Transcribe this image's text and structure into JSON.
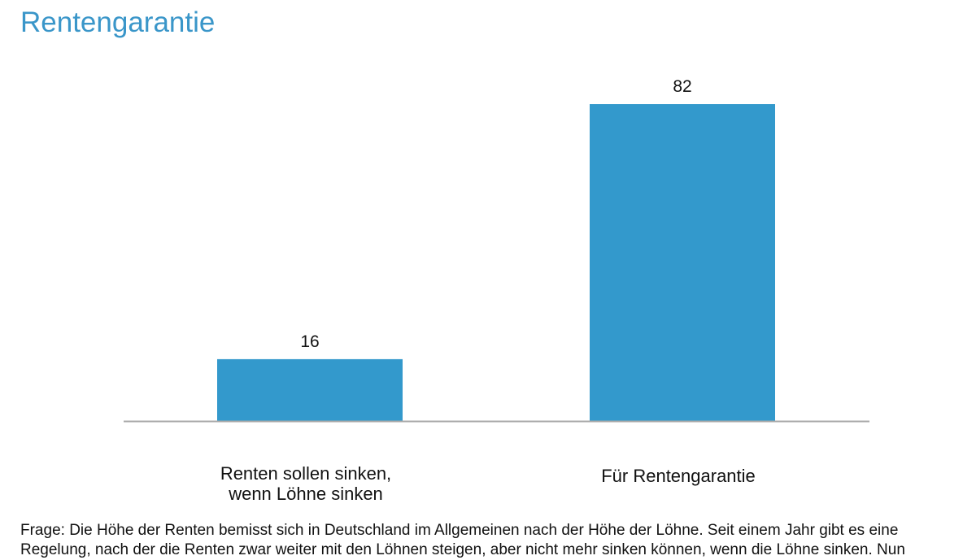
{
  "title": "Rentengarantie",
  "chart_data": {
    "type": "bar",
    "categories": [
      [
        "Renten sollen sinken,",
        "wenn Löhne sinken"
      ],
      [
        "Für Rentengarantie"
      ]
    ],
    "values": [
      16,
      82
    ],
    "data_labels": [
      "16",
      "82"
    ],
    "ylim": [
      0,
      90
    ],
    "grid": false,
    "bar_color": "#3399cc",
    "baseline_color": "#aaaaaa"
  },
  "footnote": {
    "line1": "Frage: Die Höhe der Renten bemisst sich in Deutschland im Allgemeinen nach der Höhe der Löhne. Seit einem Jahr gibt es eine",
    "line2": "Regelung, nach der die Renten zwar weiter mit den Löhnen steigen, aber nicht mehr sinken können, wenn die Löhne sinken. Nun"
  }
}
